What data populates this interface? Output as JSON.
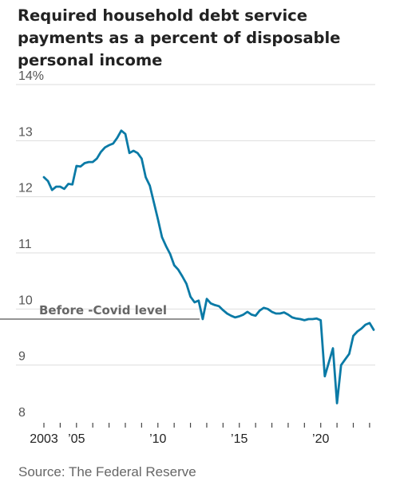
{
  "title": "Required household debt service payments as a percent of disposable personal income",
  "source": "Source: The Federal Reserve",
  "chart_data": {
    "type": "line",
    "title": "Required household debt service payments as a percent of disposable personal income",
    "ylim": [
      8,
      14
    ],
    "xlim": [
      2003,
      2023.25
    ],
    "y_ticks": [
      {
        "value": 14,
        "label": "14%"
      },
      {
        "value": 13,
        "label": "13"
      },
      {
        "value": 12,
        "label": "12"
      },
      {
        "value": 11,
        "label": "11"
      },
      {
        "value": 10,
        "label": "10"
      },
      {
        "value": 9,
        "label": "9"
      },
      {
        "value": 8,
        "label": "8"
      }
    ],
    "x_tick_years": [
      2003,
      2004,
      2005,
      2006,
      2007,
      2008,
      2009,
      2010,
      2011,
      2012,
      2013,
      2014,
      2015,
      2016,
      2017,
      2018,
      2019,
      2020,
      2021,
      2022,
      2023
    ],
    "x_tick_labels": [
      {
        "value": 2003,
        "label": "2003"
      },
      {
        "value": 2005,
        "label": "'05"
      },
      {
        "value": 2010,
        "label": "'10"
      },
      {
        "value": 2015,
        "label": "'15"
      },
      {
        "value": 2020,
        "label": "'20"
      }
    ],
    "grid": true,
    "reference_line": {
      "value": 9.82,
      "label": "Before -Covid level"
    },
    "line_color": "#0a7aa6",
    "series": [
      {
        "x": [
          2003.0,
          2003.25,
          2003.5,
          2003.75,
          2004.0,
          2004.25,
          2004.5,
          2004.75,
          2005.0,
          2005.25,
          2005.5,
          2005.75,
          2006.0,
          2006.25,
          2006.5,
          2006.75,
          2007.0,
          2007.25,
          2007.5,
          2007.75,
          2008.0,
          2008.25,
          2008.5,
          2008.75,
          2009.0,
          2009.25,
          2009.5,
          2009.75,
          2010.0,
          2010.25,
          2010.5,
          2010.75,
          2011.0,
          2011.25,
          2011.5,
          2011.75,
          2012.0,
          2012.25,
          2012.5,
          2012.75,
          2013.0,
          2013.25,
          2013.5,
          2013.75,
          2014.0,
          2014.25,
          2014.5,
          2014.75,
          2015.0,
          2015.25,
          2015.5,
          2015.75,
          2016.0,
          2016.25,
          2016.5,
          2016.75,
          2017.0,
          2017.25,
          2017.5,
          2017.75,
          2018.0,
          2018.25,
          2018.5,
          2018.75,
          2019.0,
          2019.25,
          2019.5,
          2019.75,
          2020.0,
          2020.25,
          2020.5,
          2020.75,
          2021.0,
          2021.25,
          2021.5,
          2021.75,
          2022.0,
          2022.25,
          2022.5,
          2022.75,
          2023.0,
          2023.25
        ],
        "values": [
          12.35,
          12.28,
          12.12,
          12.18,
          12.18,
          12.14,
          12.23,
          12.22,
          12.55,
          12.54,
          12.6,
          12.62,
          12.62,
          12.68,
          12.8,
          12.88,
          12.92,
          12.95,
          13.05,
          13.18,
          13.12,
          12.78,
          12.82,
          12.78,
          12.68,
          12.35,
          12.2,
          11.9,
          11.6,
          11.28,
          11.12,
          10.98,
          10.78,
          10.7,
          10.58,
          10.45,
          10.22,
          10.12,
          10.15,
          9.82,
          10.18,
          10.1,
          10.07,
          10.05,
          9.98,
          9.92,
          9.88,
          9.85,
          9.87,
          9.9,
          9.95,
          9.9,
          9.88,
          9.97,
          10.02,
          10.0,
          9.95,
          9.92,
          9.92,
          9.94,
          9.9,
          9.85,
          9.83,
          9.82,
          9.8,
          9.82,
          9.82,
          9.83,
          9.8,
          8.8,
          9.05,
          9.3,
          8.32,
          9.0,
          9.1,
          9.2,
          9.52,
          9.6,
          9.65,
          9.72,
          9.75,
          9.63
        ]
      }
    ]
  }
}
